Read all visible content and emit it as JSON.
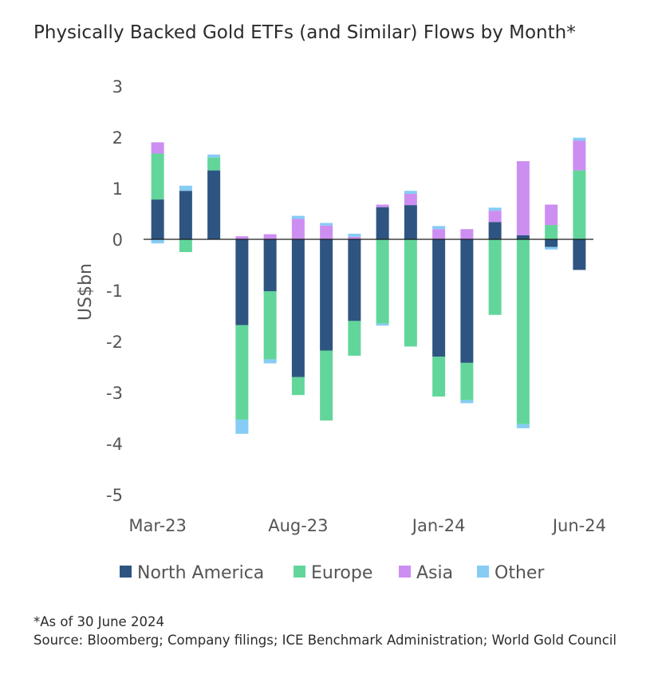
{
  "title": "Physically Backed Gold ETFs (and Similar) Flows by Month*",
  "footnote": {
    "line1": "*As of 30 June 2024",
    "line2": "Source: Bloomberg; Company filings; ICE Benchmark Administration; World Gold Council"
  },
  "chart_data": {
    "type": "bar",
    "stacked": true,
    "months": [
      "Mar-23",
      "Apr-23",
      "May-23",
      "Jun-23",
      "Jul-23",
      "Aug-23",
      "Sep-23",
      "Oct-23",
      "Nov-23",
      "Dec-23",
      "Jan-24",
      "Feb-24",
      "Mar-24",
      "Apr-24",
      "May-24",
      "Jun-24"
    ],
    "x_tick_labels": [
      "Mar-23",
      "",
      "",
      "",
      "",
      "Aug-23",
      "",
      "",
      "",
      "",
      "Jan-24",
      "",
      "",
      "",
      "",
      "Jun-24"
    ],
    "ylabel": "US$bn",
    "ylim": [
      -5,
      3
    ],
    "yticks": [
      3,
      2,
      1,
      0,
      -1,
      -2,
      -3,
      -4,
      -5
    ],
    "grid": false,
    "legend_position": "bottom",
    "colors": {
      "North America": "#2e5581",
      "Europe": "#62d69a",
      "Asia": "#cd8ef2",
      "Other": "#86ccf5"
    },
    "series": [
      {
        "name": "North America",
        "values": [
          0.78,
          0.95,
          1.35,
          -1.68,
          -1.02,
          -2.7,
          -2.18,
          -1.6,
          0.63,
          0.67,
          -2.3,
          -2.42,
          0.34,
          0.08,
          -0.15,
          -0.6
        ]
      },
      {
        "name": "Europe",
        "values": [
          0.9,
          -0.25,
          0.25,
          -1.85,
          -1.33,
          -0.35,
          -1.37,
          -0.68,
          -1.65,
          -2.1,
          -0.78,
          -0.73,
          -1.48,
          -3.62,
          0.28,
          1.35
        ]
      },
      {
        "name": "Asia",
        "values": [
          0.22,
          0.0,
          0.0,
          0.06,
          0.1,
          0.4,
          0.27,
          0.05,
          0.05,
          0.22,
          0.2,
          0.2,
          0.22,
          1.45,
          0.4,
          0.58
        ]
      },
      {
        "name": "Other",
        "values": [
          -0.08,
          0.1,
          0.06,
          -0.28,
          -0.08,
          0.06,
          0.05,
          0.06,
          -0.04,
          0.06,
          0.06,
          -0.06,
          0.06,
          -0.08,
          -0.05,
          0.06
        ]
      }
    ]
  }
}
